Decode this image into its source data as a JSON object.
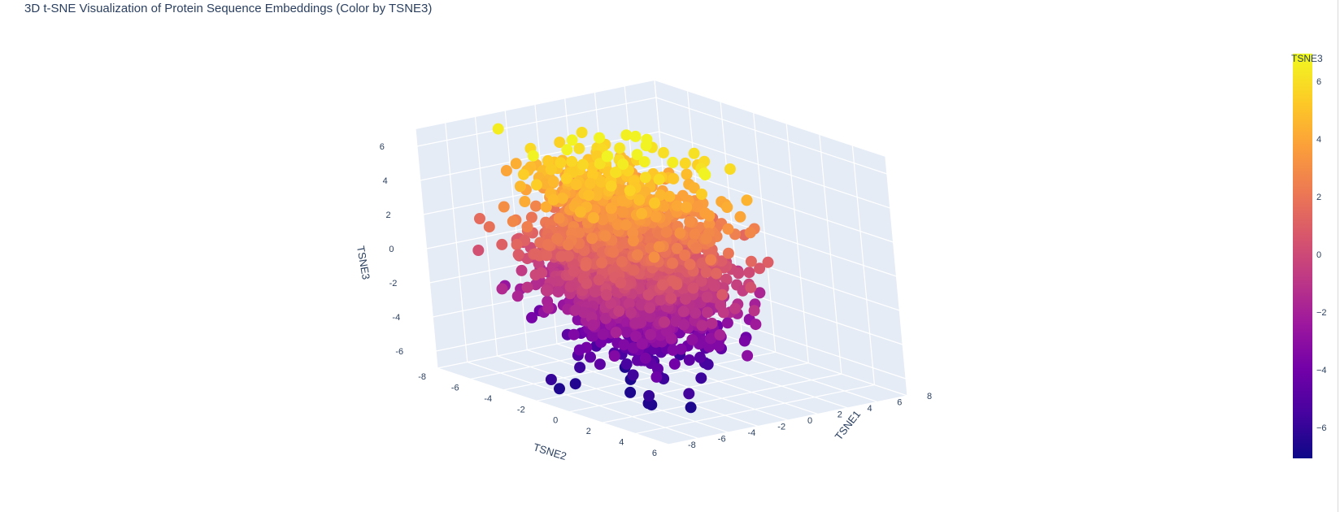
{
  "chart_data": {
    "type": "scatter",
    "title": "3D t-SNE Visualization of Protein Sequence Embeddings (Color by TSNE3)",
    "axes": {
      "x": {
        "label": "TSNE1",
        "range": [
          -8,
          8
        ],
        "ticks": [
          -8,
          -6,
          -4,
          -2,
          0,
          2,
          4,
          6,
          8
        ]
      },
      "y": {
        "label": "TSNE2",
        "range": [
          -8,
          6
        ],
        "ticks": [
          -8,
          -6,
          -4,
          -2,
          0,
          2,
          4,
          6
        ]
      },
      "z": {
        "label": "TSNE3",
        "range": [
          -7,
          7
        ],
        "ticks": [
          -6,
          -4,
          -2,
          0,
          2,
          4,
          6
        ]
      }
    },
    "colorbar": {
      "title": "TSNE3",
      "colorscale": "plasma",
      "range": [
        -7,
        7
      ],
      "ticks": [
        -6,
        -4,
        -2,
        0,
        2,
        4,
        6
      ]
    },
    "grid": true,
    "legend": "none",
    "marker_size": 7
  },
  "colors": {
    "scene_background": "#e5ecf6",
    "grid": "#ffffff",
    "text": "#2a3f5f",
    "plasma": [
      "#0d0887",
      "#46039f",
      "#7201a8",
      "#9c179e",
      "#bd3786",
      "#d8576b",
      "#ed7953",
      "#fb9f3a",
      "#fdca26",
      "#f0f921"
    ]
  }
}
